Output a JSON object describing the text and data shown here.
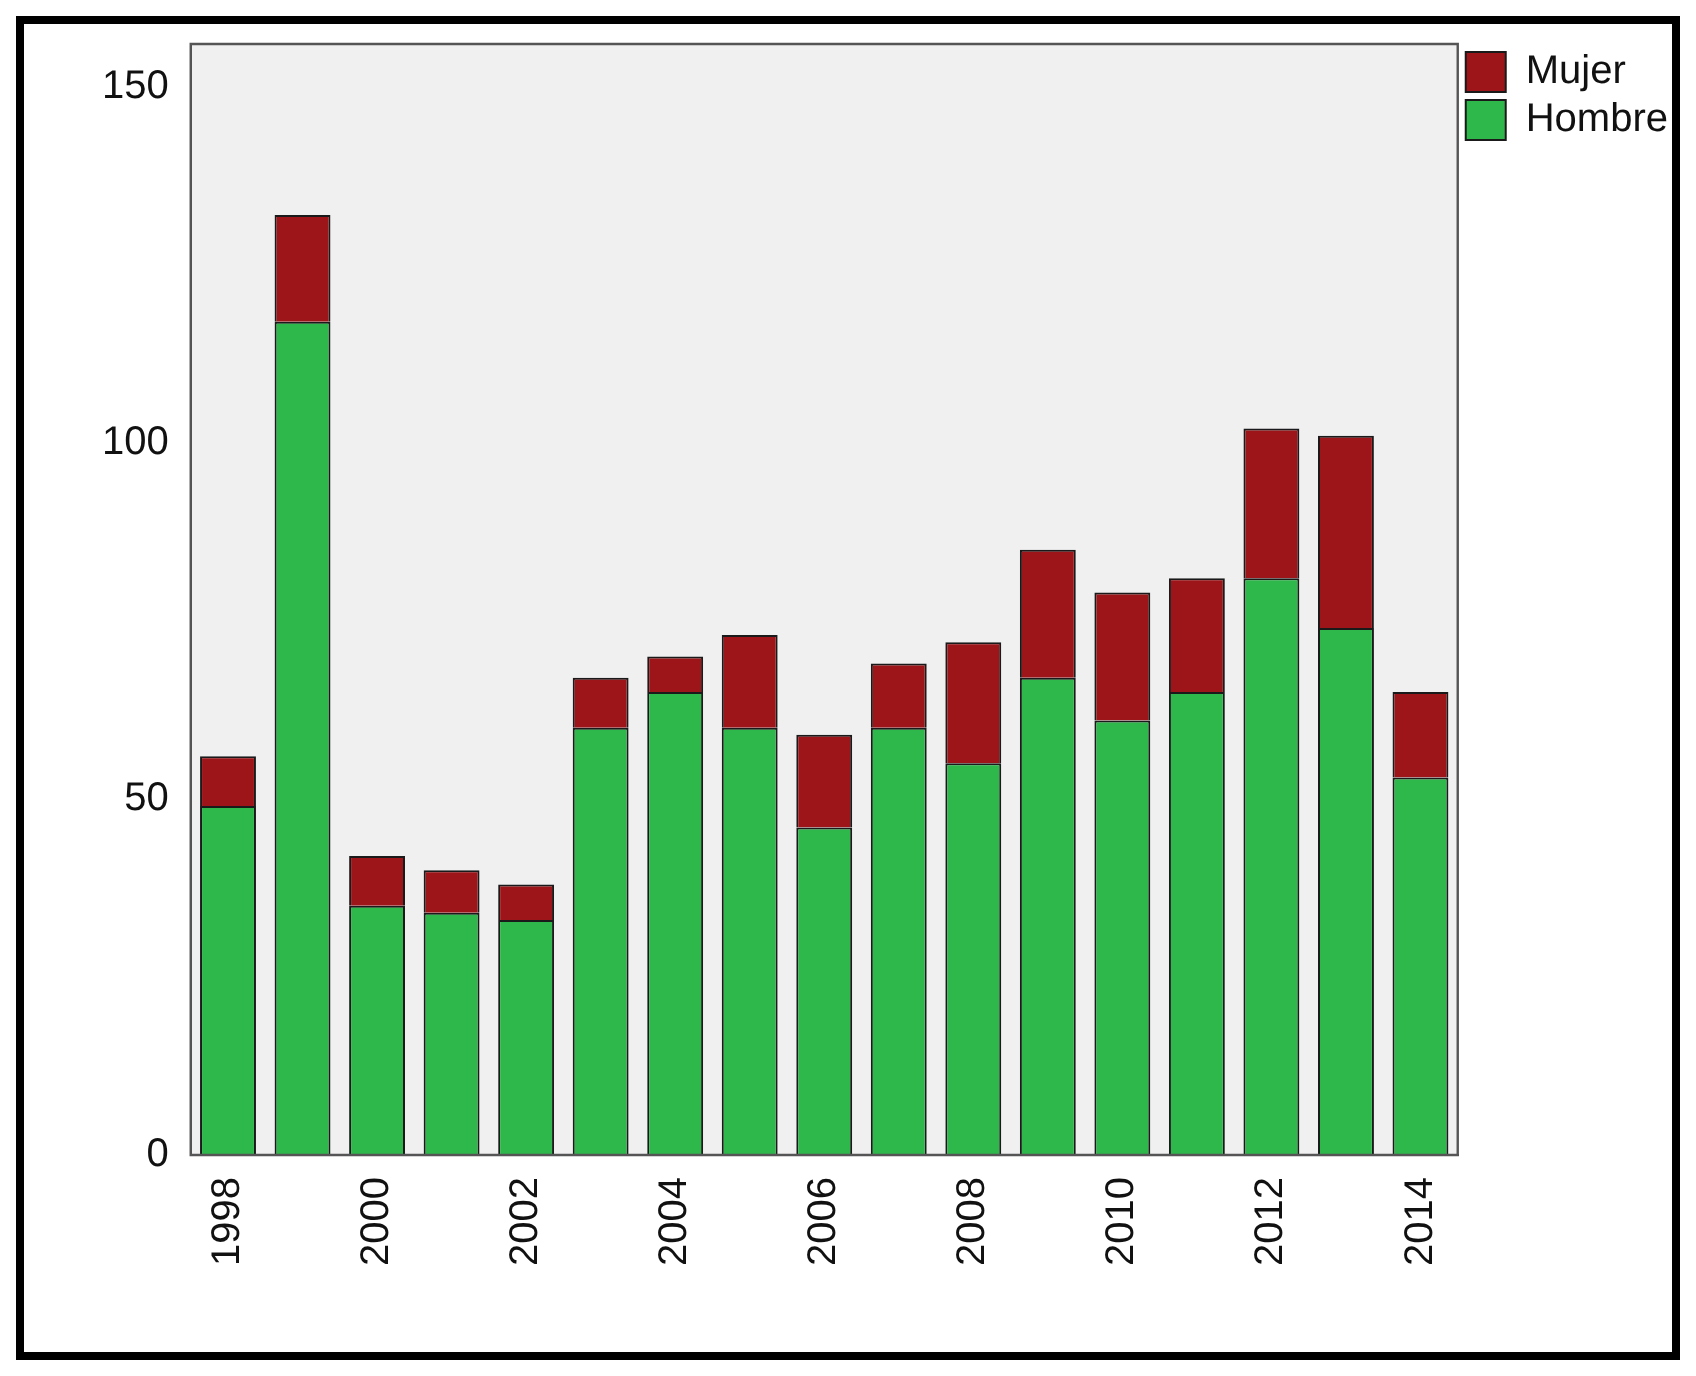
{
  "chart_data": {
    "type": "bar",
    "stacked": true,
    "categories": [
      "1998",
      null,
      "2000",
      null,
      "2002",
      null,
      "2004",
      null,
      "2006",
      null,
      "2008",
      null,
      "2010",
      null,
      "2012",
      null,
      "2014"
    ],
    "series": [
      {
        "name": "Hombre",
        "color": "#2eb84b",
        "values": [
          49,
          117,
          35,
          34,
          33,
          60,
          65,
          60,
          46,
          60,
          55,
          67,
          61,
          65,
          81,
          74,
          53
        ]
      },
      {
        "name": "Mujer",
        "color": "#9e1519",
        "values": [
          7,
          15,
          7,
          6,
          5,
          7,
          5,
          13,
          13,
          9,
          17,
          18,
          18,
          16,
          21,
          27,
          12
        ]
      }
    ],
    "ylim": [
      0,
      156
    ],
    "yticks": [
      0,
      50,
      100,
      150
    ],
    "grid": false,
    "legend": "top right"
  }
}
